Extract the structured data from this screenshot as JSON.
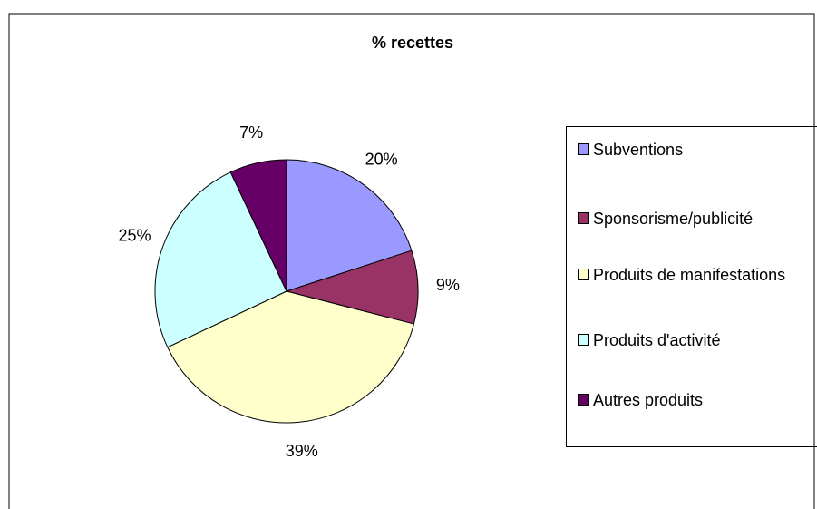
{
  "chart_data": {
    "type": "pie",
    "title": "% recettes",
    "categories": [
      "Subventions",
      "Sponsorisme/publicité",
      "Produits de manifestations",
      "Produits d'activité",
      "Autres produits"
    ],
    "values": [
      20,
      9,
      39,
      25,
      7
    ],
    "value_labels": [
      "20%",
      "9%",
      "39%",
      "25%",
      "7%"
    ],
    "colors": [
      "#9999ff",
      "#993366",
      "#ffffcc",
      "#ccffff",
      "#660066"
    ],
    "legend": "right"
  }
}
